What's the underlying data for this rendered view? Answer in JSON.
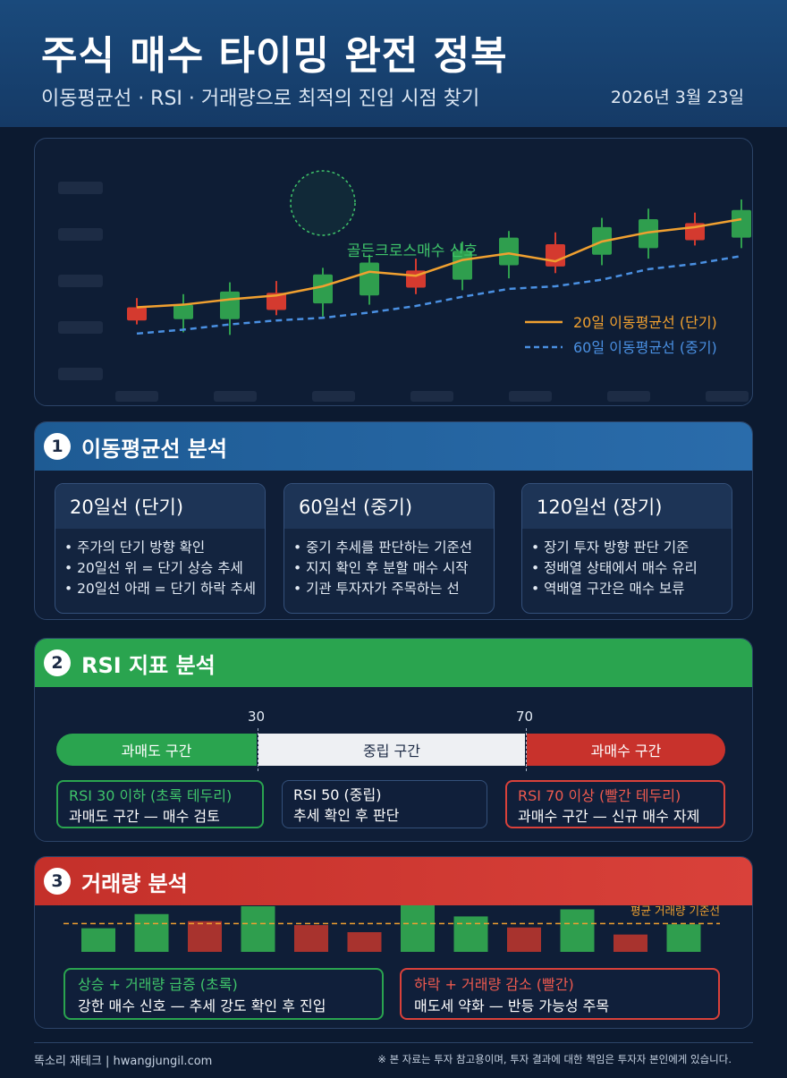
{
  "header": {
    "title": "주식 매수 타이밍 완전 정복",
    "subtitle": "이동평균선 · RSI · 거래량으로 최적의 진입 시점 찾기",
    "date": "2026년 3월 23일"
  },
  "chart": {
    "annotation": "골든크로스매수 신호",
    "legend": [
      {
        "label": "20일 이동평균선 (단기)",
        "color": "#f0a030",
        "style": "solid"
      },
      {
        "label": "60일 이동평균선 (중기)",
        "color": "#4a90e2",
        "style": "dashed"
      }
    ]
  },
  "chart_data": {
    "type": "candlestick",
    "candles": [
      {
        "open": 50,
        "high": 57,
        "low": 37,
        "close": 40,
        "color": "red"
      },
      {
        "open": 41,
        "high": 60,
        "low": 31,
        "close": 52,
        "color": "green"
      },
      {
        "open": 41,
        "high": 69,
        "low": 29,
        "close": 62,
        "color": "green"
      },
      {
        "open": 61,
        "high": 70,
        "low": 44,
        "close": 48,
        "color": "red"
      },
      {
        "open": 53,
        "high": 80,
        "low": 43,
        "close": 75,
        "color": "green"
      },
      {
        "open": 59,
        "high": 90,
        "low": 52,
        "close": 84,
        "color": "green"
      },
      {
        "open": 78,
        "high": 87,
        "low": 60,
        "close": 65,
        "color": "red"
      },
      {
        "open": 71,
        "high": 100,
        "low": 63,
        "close": 93,
        "color": "green"
      },
      {
        "open": 82,
        "high": 108,
        "low": 72,
        "close": 103,
        "color": "green"
      },
      {
        "open": 98,
        "high": 107,
        "low": 76,
        "close": 81,
        "color": "red"
      },
      {
        "open": 90,
        "high": 118,
        "low": 82,
        "close": 111,
        "color": "green"
      },
      {
        "open": 95,
        "high": 125,
        "low": 87,
        "close": 117,
        "color": "green"
      },
      {
        "open": 114,
        "high": 122,
        "low": 97,
        "close": 101,
        "color": "red"
      },
      {
        "open": 103,
        "high": 132,
        "low": 95,
        "close": 124,
        "color": "green"
      }
    ],
    "ma20": [
      50,
      52,
      56,
      59,
      66,
      77,
      74,
      86,
      91,
      85,
      100,
      107,
      111,
      117
    ],
    "ma60": [
      30,
      33,
      37,
      40,
      42,
      46,
      51,
      58,
      64,
      66,
      71,
      79,
      83,
      89
    ]
  },
  "section1": {
    "num": "1",
    "title": "이동평균선 분석",
    "cards": [
      {
        "title": "20일선 (단기)",
        "items": [
          "• 주가의 단기 방향 확인",
          "• 20일선 위 = 단기 상승 추세",
          "• 20일선 아래 = 단기 하락 추세"
        ]
      },
      {
        "title": "60일선 (중기)",
        "items": [
          "• 중기 추세를 판단하는 기준선",
          "• 지지 확인 후 분할 매수 시작",
          "• 기관 투자자가 주목하는 선"
        ]
      },
      {
        "title": "120일선 (장기)",
        "items": [
          "• 장기 투자 방향 판단 기준",
          "• 정배열 상태에서 매수 유리",
          "• 역배열 구간은 매수 보류"
        ]
      }
    ]
  },
  "section2": {
    "num": "2",
    "title": "RSI 지표 분석",
    "markers": [
      "30",
      "70"
    ],
    "zones": [
      "과매도 구간",
      "중립 구간",
      "과매수 구간"
    ],
    "cards": [
      {
        "line1": "RSI 30 이하 (초록 테두리)",
        "line2": "과매도 구간 — 매수 검토"
      },
      {
        "line1": "RSI 50 (중립)",
        "line2": "추세 확인 후 판단"
      },
      {
        "line1": "RSI 70 이상 (빨간 테두리)",
        "line2": "과매수 구간 — 신규 매수 자제"
      }
    ]
  },
  "section3": {
    "num": "3",
    "title": "거래량 분석",
    "avg_label": "평균 거래량 기준선",
    "volumes": [
      {
        "value": 30,
        "color": "green"
      },
      {
        "value": 48,
        "color": "green"
      },
      {
        "value": 39,
        "color": "red"
      },
      {
        "value": 58,
        "color": "green"
      },
      {
        "value": 34,
        "color": "red"
      },
      {
        "value": 25,
        "color": "red"
      },
      {
        "value": 68,
        "color": "green"
      },
      {
        "value": 45,
        "color": "green"
      },
      {
        "value": 31,
        "color": "red"
      },
      {
        "value": 54,
        "color": "green"
      },
      {
        "value": 22,
        "color": "red"
      },
      {
        "value": 35,
        "color": "green"
      }
    ],
    "avg_value": 36,
    "cards": [
      {
        "line1": "상승 + 거래량 급증 (초록)",
        "line2": "강한 매수 신호 — 추세 강도 확인 후 진입"
      },
      {
        "line1": "하락 + 거래량 감소 (빨간)",
        "line2": "매도세 약화 — 반등 가능성 주목"
      }
    ]
  },
  "footer": {
    "left": "똑소리 재테크  |  hwangjungil.com",
    "right": "※ 본 자료는 투자 참고용이며, 투자 결과에 대한 책임은 투자자 본인에게 있습니다."
  },
  "colors": {
    "up": "#2f9e4e",
    "down": "#d43a2f",
    "ma20": "#f0a030",
    "ma60": "#4a90e2"
  }
}
